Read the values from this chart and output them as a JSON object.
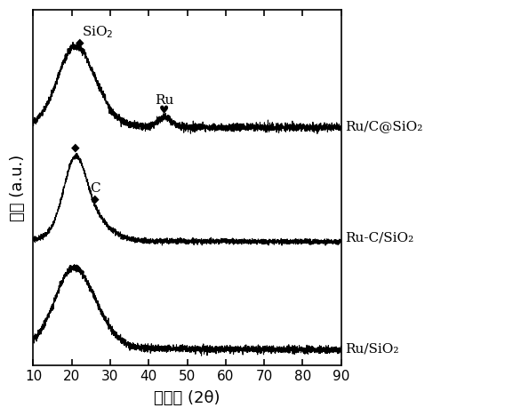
{
  "title": "",
  "xlabel": "衍射角 (2θ)",
  "ylabel": "强度 (a.u.)",
  "xlim": [
    10,
    90
  ],
  "ylim": [
    -0.05,
    1.0
  ],
  "x_ticks": [
    10,
    20,
    30,
    40,
    50,
    60,
    70,
    80,
    90
  ],
  "background_color": "#ffffff",
  "line_color": "#000000",
  "labels": [
    "Ru/C@SiO₂",
    "Ru-C/SiO₂",
    "Ru/SiO₂"
  ],
  "offsets": [
    0.62,
    0.31,
    0.0
  ],
  "sio2_label": "SiO₂",
  "ru_label": "Ru",
  "c_label": "C"
}
